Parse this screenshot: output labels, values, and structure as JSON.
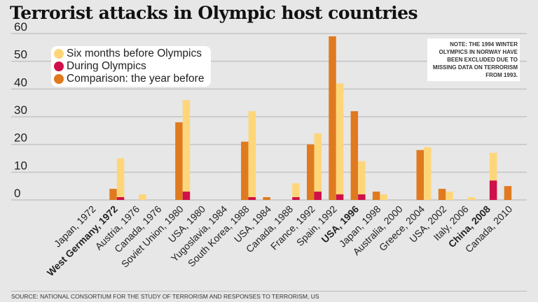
{
  "title": "Terrorist attacks in Olympic host countries",
  "note": "NOTE: THE 1994 WINTER OLYMPICS IN NORWAY HAVE BEEN EXCLUDED DUE TO MISSING DATA ON TERRORISM FROM 1993.",
  "source": "SOURCE: NATIONAL CONSORTIUM FOR THE STUDY OF TERRORISM AND RESPONSES TO TERRORISM, US",
  "chart_data": {
    "type": "bar",
    "title": "Terrorist attacks in Olympic host countries",
    "ylim": [
      0,
      60
    ],
    "yticks": [
      0,
      10,
      20,
      30,
      40,
      50,
      60
    ],
    "grid": true,
    "legend": "top-left",
    "categories": [
      "Japan, 1972",
      "West Germany, 1972",
      "Austria, 1976",
      "Canada, 1976",
      "Soviet Union, 1980",
      "USA, 1980",
      "Yugoslavia, 1984",
      "South Korea, 1988",
      "USA, 1984",
      "Canada, 1988",
      "France, 1992",
      "Spain, 1992",
      "USA, 1996",
      "Japan, 1998",
      "Australia, 2000",
      "Greece, 2004",
      "USA, 2002",
      "Italy, 2006",
      "China, 2008",
      "Canada, 2010"
    ],
    "bold_categories": [
      "West Germany, 1972",
      "USA, 1996",
      "China, 2008"
    ],
    "series": [
      {
        "name": "Comparison: the year before",
        "color": "#e07a1f",
        "values": [
          0,
          4,
          0,
          0,
          28,
          0,
          0,
          21,
          1,
          0,
          20,
          59,
          32,
          3,
          0,
          18,
          4,
          0,
          0,
          5
        ]
      },
      {
        "name": "Six months before Olympics",
        "color": "#fed67a",
        "values": [
          0,
          15,
          2,
          0,
          36,
          0,
          0,
          32,
          0,
          6,
          24,
          42,
          14,
          2,
          0,
          19,
          3,
          1,
          17,
          0
        ]
      },
      {
        "name": "During Olympics",
        "color": "#d0104a",
        "values": [
          0,
          1,
          0,
          0,
          3,
          0,
          0,
          1,
          0,
          1,
          3,
          2,
          2,
          0,
          0,
          0,
          0,
          0,
          7,
          0
        ]
      }
    ]
  }
}
